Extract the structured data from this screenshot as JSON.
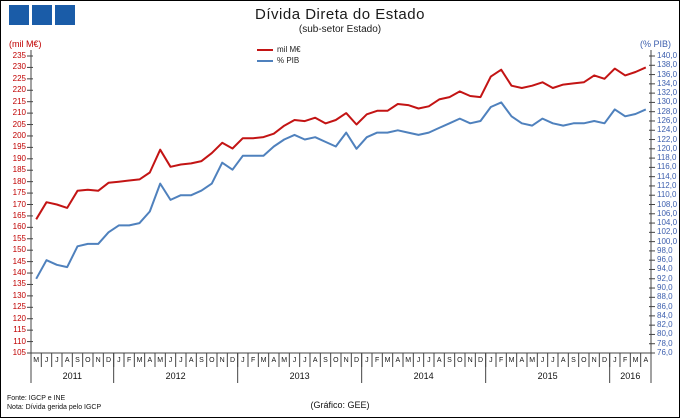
{
  "header": {
    "title": "Dívida Direta do Estado",
    "subtitle": "(sub-setor  Estado)"
  },
  "logo": {
    "color": "#1a5ca8",
    "squares": 3
  },
  "colors": {
    "red_series": "#c31414",
    "blue_series": "#4f81bd",
    "left_axis_text": "#c00000",
    "right_axis_text": "#3d5fae",
    "axis_line": "#444444"
  },
  "axes_titles": {
    "left": "(mil M€)",
    "right": "(% PIB)"
  },
  "footer": {
    "source": "Fonte: IGCP e INE",
    "note": "Nota: Dívida gerida pelo IGCP",
    "credit": "(Gráfico: GEE)"
  },
  "chart_data": {
    "type": "line",
    "title": "Dívida Direta do Estado",
    "subtitle": "(sub-setor Estado)",
    "grid": false,
    "legend_position": "top-center",
    "x": {
      "years": [
        {
          "label": "2011",
          "months": [
            "M",
            "J",
            "J",
            "A",
            "S",
            "O",
            "N",
            "D"
          ]
        },
        {
          "label": "2012",
          "months": [
            "J",
            "F",
            "M",
            "A",
            "M",
            "J",
            "J",
            "A",
            "S",
            "O",
            "N",
            "D"
          ]
        },
        {
          "label": "2013",
          "months": [
            "J",
            "F",
            "M",
            "A",
            "M",
            "J",
            "J",
            "A",
            "S",
            "O",
            "N",
            "D"
          ]
        },
        {
          "label": "2014",
          "months": [
            "J",
            "F",
            "M",
            "A",
            "M",
            "J",
            "J",
            "A",
            "S",
            "O",
            "N",
            "D"
          ]
        },
        {
          "label": "2015",
          "months": [
            "J",
            "F",
            "M",
            "A",
            "M",
            "J",
            "J",
            "A",
            "S",
            "O",
            "N",
            "D"
          ]
        },
        {
          "label": "2016",
          "months": [
            "J",
            "F",
            "M",
            "A"
          ]
        }
      ],
      "range_note": "May 2011 - Apr 2016, monthly"
    },
    "axes": {
      "left": {
        "label": "(mil M€)",
        "min": 105,
        "max": 235,
        "step": 5,
        "ticks": [
          "235",
          "230",
          "225",
          "220",
          "215",
          "210",
          "205",
          "200",
          "195",
          "190",
          "185",
          "180",
          "175",
          "170",
          "165",
          "160",
          "155",
          "150",
          "145",
          "140",
          "135",
          "130",
          "125",
          "120",
          "115",
          "110",
          "105"
        ]
      },
      "right": {
        "label": "(% PIB)",
        "min": 76,
        "max": 140,
        "step": 2,
        "ticks": [
          "140,0",
          "138,0",
          "136,0",
          "134,0",
          "132,0",
          "130,0",
          "128,0",
          "126,0",
          "124,0",
          "122,0",
          "120,0",
          "118,0",
          "116,0",
          "114,0",
          "112,0",
          "110,0",
          "108,0",
          "106,0",
          "104,0",
          "102,0",
          "100,0",
          "98,0",
          "96,0",
          "94,0",
          "92,0",
          "90,0",
          "88,0",
          "86,0",
          "84,0",
          "82,0",
          "80,0",
          "78,0",
          "76,0"
        ]
      }
    },
    "series": [
      {
        "name": "mil M€",
        "axis": "left",
        "color": "#c31414",
        "values": [
          163.5,
          171,
          170,
          168.5,
          176,
          176.5,
          176,
          179.5,
          180,
          180.5,
          181,
          184,
          194,
          186.5,
          187.5,
          188,
          189,
          192.5,
          197,
          194.5,
          199,
          199,
          199.5,
          201,
          204.5,
          207,
          206.5,
          208,
          205.5,
          207,
          210,
          205,
          209.5,
          211,
          211,
          214,
          213.5,
          212,
          213,
          216,
          217,
          219.5,
          217.5,
          217,
          226,
          229,
          222,
          221,
          222,
          223.5,
          221,
          222.5,
          223,
          223.5,
          226.5,
          225,
          229.5,
          226.5,
          228,
          230
        ]
      },
      {
        "name": "% PIB",
        "axis": "right",
        "color": "#4f81bd",
        "values": [
          92,
          96,
          95,
          94.5,
          99,
          99.5,
          99.5,
          102,
          103.5,
          103.5,
          104,
          106.5,
          112.5,
          109,
          110,
          110,
          111,
          112.5,
          117,
          115.5,
          118.5,
          118.5,
          118.5,
          120.5,
          122,
          123,
          122,
          122.5,
          121.5,
          120.5,
          123.5,
          120,
          122.5,
          123.5,
          123.5,
          124,
          123.5,
          123,
          123.5,
          124.5,
          125.5,
          126.5,
          125.5,
          126,
          129,
          130,
          127,
          125.5,
          125,
          126.5,
          125.5,
          125,
          125.5,
          125.5,
          126,
          125.5,
          128.5,
          127,
          127.5,
          128.5
        ]
      }
    ]
  }
}
